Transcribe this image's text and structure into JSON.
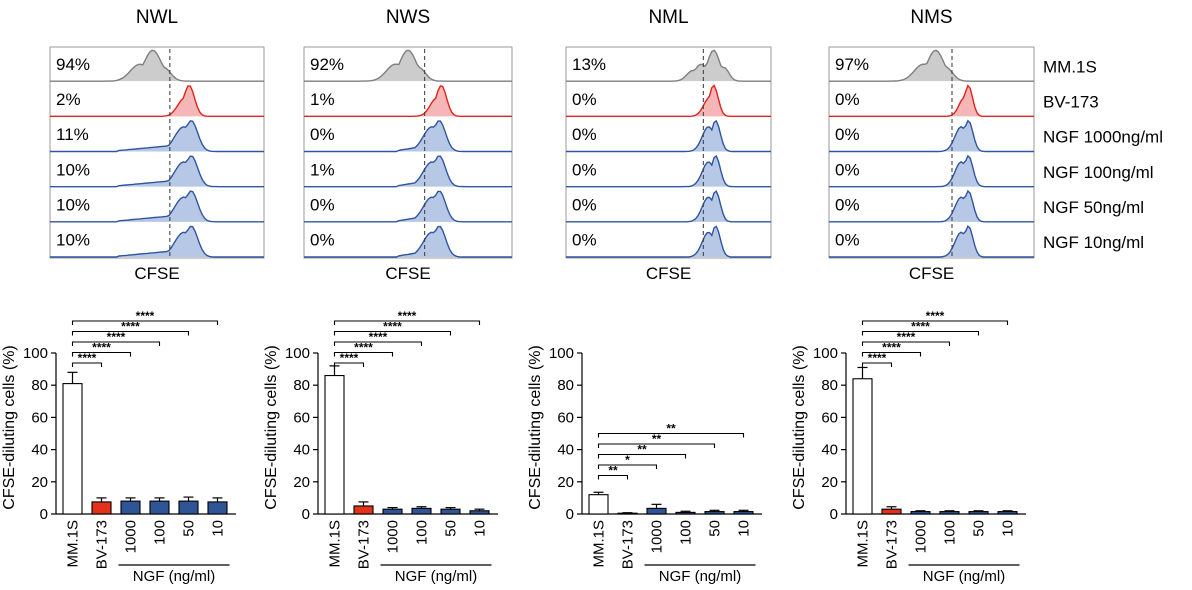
{
  "figure": {
    "flow_xlabel": "CFSE",
    "row_labels": [
      "MM.1S",
      "BV-173",
      "NGF 1000ng/ml",
      "NGF 100ng/ml",
      "NGF 50ng/ml",
      "NGF 10ng/ml"
    ],
    "bar_ylabel": "CFSE-diluting cells (%)",
    "bar_group_label": "NGF (ng/ml)",
    "colors": {
      "mm1s_fill": "#cccccc",
      "mm1s_line": "#7f7f7f",
      "bv_fill": "#f4b6b6",
      "bv_line": "#e3211c",
      "ngf_fill": "#b6c8e6",
      "ngf_line": "#2f55a0",
      "bar_bv": "#e3311c",
      "bar_ngf": "#2f5597",
      "gate": "#444444"
    }
  },
  "chart_data": [
    {
      "type": "histogram",
      "title": "NWL",
      "xlabel": "CFSE",
      "gate_x": 0.56,
      "rows": [
        {
          "label": "MM.1S",
          "percent": "94%",
          "peak": 0.48,
          "width": 0.04,
          "color": "gray"
        },
        {
          "label": "BV-173",
          "percent": "2%",
          "peak": 0.65,
          "width": 0.025,
          "color": "red"
        },
        {
          "label": "NGF 1000ng/ml",
          "percent": "11%",
          "peak": 0.66,
          "width": 0.03,
          "color": "blue",
          "tail": 0.34
        },
        {
          "label": "NGF 100ng/ml",
          "percent": "10%",
          "peak": 0.66,
          "width": 0.03,
          "color": "blue",
          "tail": 0.34
        },
        {
          "label": "NGF 50ng/ml",
          "percent": "10%",
          "peak": 0.66,
          "width": 0.03,
          "color": "blue",
          "tail": 0.34
        },
        {
          "label": "NGF 10ng/ml",
          "percent": "10%",
          "peak": 0.66,
          "width": 0.03,
          "color": "blue",
          "tail": 0.34
        }
      ]
    },
    {
      "type": "histogram",
      "title": "NWS",
      "xlabel": "CFSE",
      "gate_x": 0.58,
      "rows": [
        {
          "label": "MM.1S",
          "percent": "92%",
          "peak": 0.5,
          "width": 0.04,
          "color": "gray"
        },
        {
          "label": "BV-173",
          "percent": "1%",
          "peak": 0.66,
          "width": 0.025,
          "color": "red"
        },
        {
          "label": "NGF 1000ng/ml",
          "percent": "0%",
          "peak": 0.65,
          "width": 0.03,
          "color": "blue",
          "tail": 0.2
        },
        {
          "label": "NGF 100ng/ml",
          "percent": "1%",
          "peak": 0.65,
          "width": 0.03,
          "color": "blue",
          "tail": 0.2
        },
        {
          "label": "NGF 50ng/ml",
          "percent": "0%",
          "peak": 0.65,
          "width": 0.03,
          "color": "blue",
          "tail": 0.2
        },
        {
          "label": "NGF 10ng/ml",
          "percent": "0%",
          "peak": 0.65,
          "width": 0.03,
          "color": "blue",
          "tail": 0.2
        }
      ]
    },
    {
      "type": "histogram",
      "title": "NML",
      "xlabel": "CFSE",
      "gate_x": 0.67,
      "rows": [
        {
          "label": "MM.1S",
          "percent": "13%",
          "peak": 0.72,
          "width": 0.03,
          "color": "gray",
          "shoulder": 0.62
        },
        {
          "label": "BV-173",
          "percent": "0%",
          "peak": 0.72,
          "width": 0.022,
          "color": "red"
        },
        {
          "label": "NGF 1000ng/ml",
          "percent": "0%",
          "peak": 0.73,
          "width": 0.022,
          "color": "blue",
          "tail": 0.05
        },
        {
          "label": "NGF 100ng/ml",
          "percent": "0%",
          "peak": 0.73,
          "width": 0.022,
          "color": "blue",
          "tail": 0.05
        },
        {
          "label": "NGF 50ng/ml",
          "percent": "0%",
          "peak": 0.73,
          "width": 0.022,
          "color": "blue",
          "tail": 0.05
        },
        {
          "label": "NGF 10ng/ml",
          "percent": "0%",
          "peak": 0.73,
          "width": 0.022,
          "color": "blue",
          "tail": 0.05
        }
      ]
    },
    {
      "type": "histogram",
      "title": "NMS",
      "xlabel": "CFSE",
      "gate_x": 0.6,
      "rows": [
        {
          "label": "MM.1S",
          "percent": "97%",
          "peak": 0.52,
          "width": 0.04,
          "color": "gray"
        },
        {
          "label": "BV-173",
          "percent": "0%",
          "peak": 0.68,
          "width": 0.02,
          "color": "red"
        },
        {
          "label": "NGF 1000ng/ml",
          "percent": "0%",
          "peak": 0.68,
          "width": 0.022,
          "color": "blue",
          "tail": 0.05
        },
        {
          "label": "NGF 100ng/ml",
          "percent": "0%",
          "peak": 0.68,
          "width": 0.022,
          "color": "blue",
          "tail": 0.05
        },
        {
          "label": "NGF 50ng/ml",
          "percent": "0%",
          "peak": 0.68,
          "width": 0.022,
          "color": "blue",
          "tail": 0.05
        },
        {
          "label": "NGF 10ng/ml",
          "percent": "0%",
          "peak": 0.68,
          "width": 0.022,
          "color": "blue",
          "tail": 0.05
        }
      ]
    },
    {
      "type": "bar",
      "panel": "NWL",
      "ylabel": "CFSE-diluting cells (%)",
      "ylim": [
        0,
        100
      ],
      "yticks": [
        0,
        20,
        40,
        60,
        80,
        100
      ],
      "categories": [
        "MM.1S",
        "BV-173",
        "1000",
        "100",
        "50",
        "10"
      ],
      "group_label": "NGF (ng/ml)",
      "values": [
        81,
        7.5,
        8,
        8,
        8,
        7.5
      ],
      "errors": [
        7,
        2.5,
        2,
        2,
        2.5,
        2.5
      ],
      "bar_colors": [
        "white",
        "red",
        "blue",
        "blue",
        "blue",
        "blue"
      ],
      "significance": [
        {
          "from": 0,
          "to": 1,
          "label": "****"
        },
        {
          "from": 0,
          "to": 2,
          "label": "****"
        },
        {
          "from": 0,
          "to": 3,
          "label": "****"
        },
        {
          "from": 0,
          "to": 4,
          "label": "****"
        },
        {
          "from": 0,
          "to": 5,
          "label": "****"
        }
      ]
    },
    {
      "type": "bar",
      "panel": "NWS",
      "ylabel": "CFSE-diluting cells (%)",
      "ylim": [
        0,
        100
      ],
      "yticks": [
        0,
        20,
        40,
        60,
        80,
        100
      ],
      "categories": [
        "MM.1S",
        "BV-173",
        "1000",
        "100",
        "50",
        "10"
      ],
      "group_label": "NGF (ng/ml)",
      "values": [
        86,
        5,
        3,
        3.5,
        3,
        2
      ],
      "errors": [
        6,
        2.5,
        1,
        1,
        1,
        1
      ],
      "bar_colors": [
        "white",
        "red",
        "blue",
        "blue",
        "blue",
        "blue"
      ],
      "significance": [
        {
          "from": 0,
          "to": 1,
          "label": "****"
        },
        {
          "from": 0,
          "to": 2,
          "label": "****"
        },
        {
          "from": 0,
          "to": 3,
          "label": "****"
        },
        {
          "from": 0,
          "to": 4,
          "label": "****"
        },
        {
          "from": 0,
          "to": 5,
          "label": "****"
        }
      ]
    },
    {
      "type": "bar",
      "panel": "NML",
      "ylabel": "CFSE-diluting cells (%)",
      "ylim": [
        0,
        100
      ],
      "yticks": [
        0,
        20,
        40,
        60,
        80,
        100
      ],
      "categories": [
        "MM.1S",
        "BV-173",
        "1000",
        "100",
        "50",
        "10"
      ],
      "group_label": "NGF (ng/ml)",
      "values": [
        12,
        0.5,
        3.5,
        1,
        1.5,
        1.5
      ],
      "errors": [
        1.5,
        0.3,
        2.5,
        0.7,
        0.8,
        0.8
      ],
      "bar_colors": [
        "white",
        "red",
        "blue",
        "blue",
        "blue",
        "blue"
      ],
      "significance": [
        {
          "from": 0,
          "to": 1,
          "label": "**"
        },
        {
          "from": 0,
          "to": 2,
          "label": "*"
        },
        {
          "from": 0,
          "to": 3,
          "label": "**"
        },
        {
          "from": 0,
          "to": 4,
          "label": "**"
        },
        {
          "from": 0,
          "to": 5,
          "label": "**"
        }
      ]
    },
    {
      "type": "bar",
      "panel": "NMS",
      "ylabel": "CFSE-diluting cells (%)",
      "ylim": [
        0,
        100
      ],
      "yticks": [
        0,
        20,
        40,
        60,
        80,
        100
      ],
      "categories": [
        "MM.1S",
        "BV-173",
        "1000",
        "100",
        "50",
        "10"
      ],
      "group_label": "NGF (ng/ml)",
      "values": [
        84,
        3,
        1.5,
        1.5,
        1.5,
        1.5
      ],
      "errors": [
        7,
        1.5,
        0.5,
        0.5,
        0.5,
        0.5
      ],
      "bar_colors": [
        "white",
        "red",
        "blue",
        "blue",
        "blue",
        "blue"
      ],
      "significance": [
        {
          "from": 0,
          "to": 1,
          "label": "****"
        },
        {
          "from": 0,
          "to": 2,
          "label": "****"
        },
        {
          "from": 0,
          "to": 3,
          "label": "****"
        },
        {
          "from": 0,
          "to": 4,
          "label": "****"
        },
        {
          "from": 0,
          "to": 5,
          "label": "****"
        }
      ]
    }
  ]
}
